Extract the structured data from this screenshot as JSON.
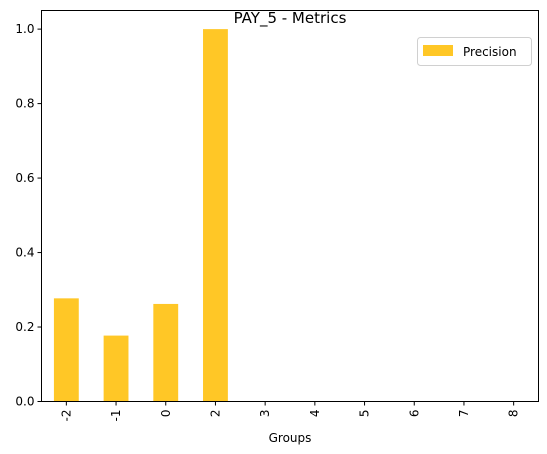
{
  "chart_data": {
    "type": "bar",
    "title": "PAY_5 - Metrics",
    "xlabel": "Groups",
    "ylabel": "",
    "categories": [
      "-2",
      "-1",
      "0",
      "2",
      "3",
      "4",
      "5",
      "6",
      "7",
      "8"
    ],
    "series": [
      {
        "name": "Precision",
        "color": "#ffc726",
        "values": [
          0.277,
          0.177,
          0.262,
          1.0,
          0,
          0,
          0,
          0,
          0,
          0
        ]
      }
    ],
    "ylim": [
      0,
      1.05
    ],
    "yticks": [
      "0.0",
      "0.2",
      "0.4",
      "0.6",
      "0.8",
      "1.0"
    ],
    "grid": false,
    "legend_position": "top-right"
  }
}
